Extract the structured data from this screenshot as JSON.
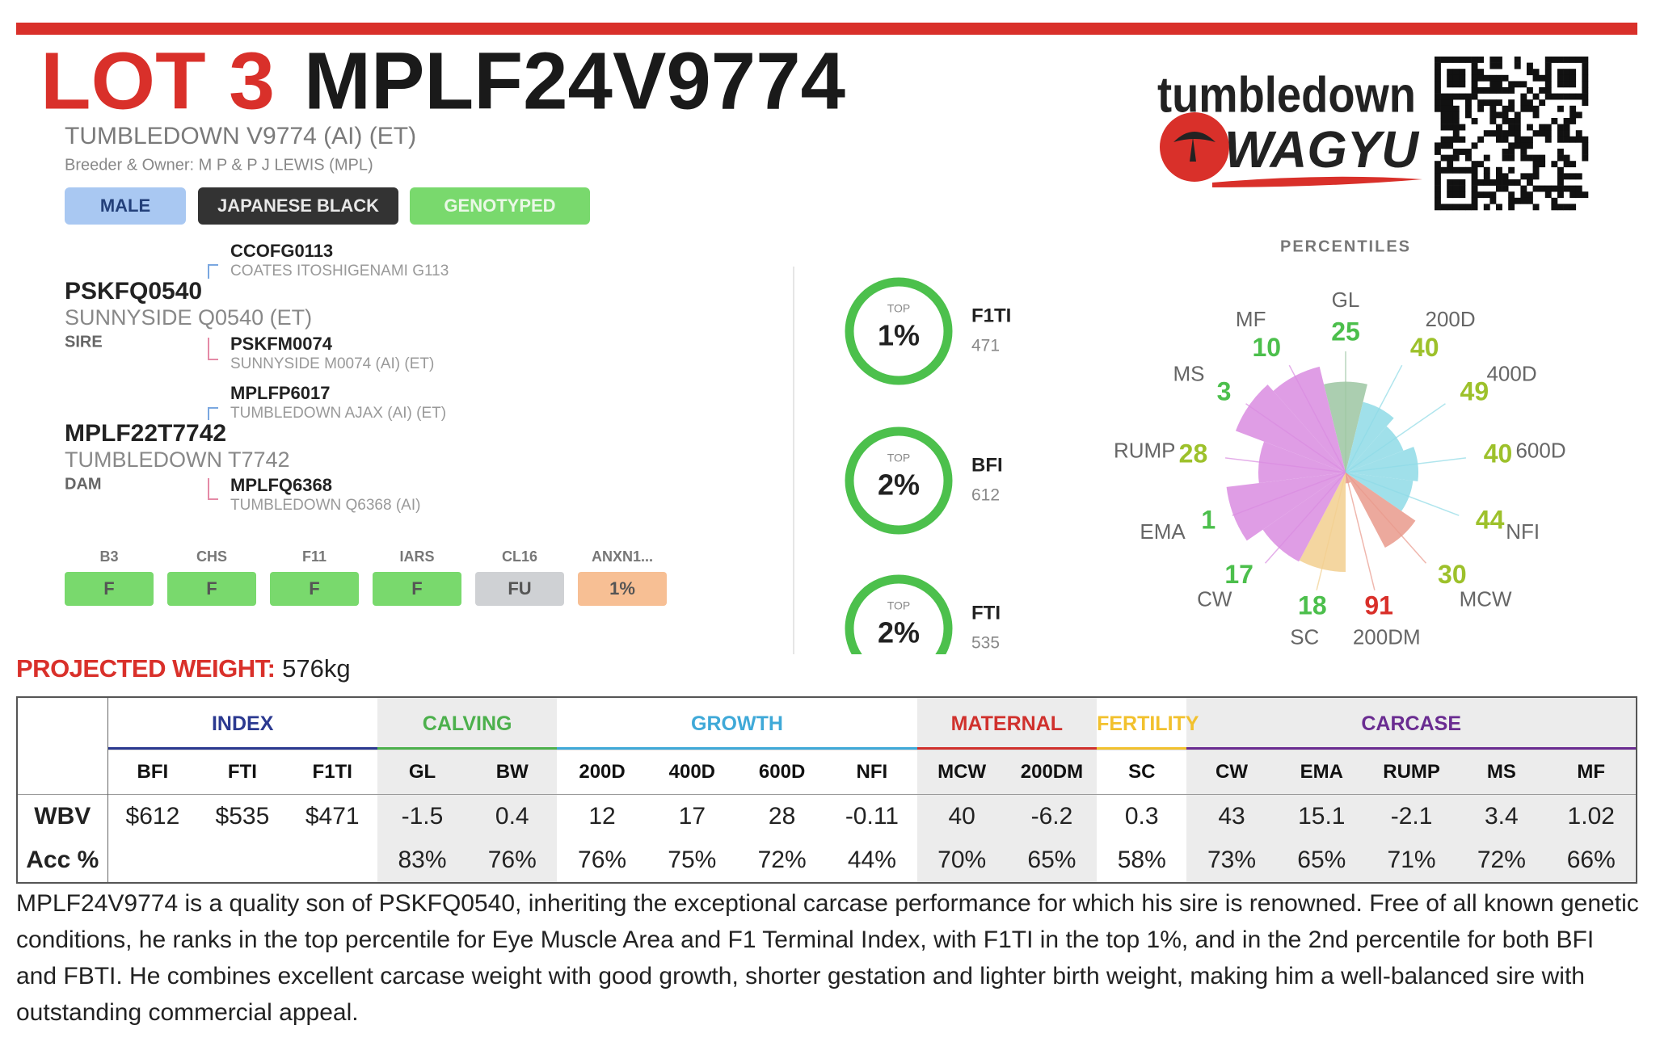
{
  "header": {
    "lot": "LOT 3",
    "id": "MPLF24V9774",
    "name": "TUMBLEDOWN V9774 (AI) (ET)",
    "breeder": "Breeder & Owner: M P & P J LEWIS (MPL)"
  },
  "badges": [
    {
      "text": "MALE",
      "bg": "#a9c8f2",
      "fg": "#23407a"
    },
    {
      "text": "JAPANESE BLACK",
      "bg": "#333333",
      "fg": "#e8e8e8"
    },
    {
      "text": "GENOTYPED",
      "bg": "#79d96d",
      "fg": "#eaf8e6"
    }
  ],
  "pedigree": {
    "sire": {
      "id": "PSKFQ0540",
      "name": "SUNNYSIDE Q0540 (ET)",
      "role": "SIRE"
    },
    "sire_sire": {
      "id": "CCOFG0113",
      "name": "COATES ITOSHIGENAMI G113"
    },
    "sire_dam": {
      "id": "PSKFM0074",
      "name": "SUNNYSIDE M0074 (AI) (ET)"
    },
    "dam": {
      "id": "MPLF22T7742",
      "name": "TUMBLEDOWN T7742",
      "role": "DAM"
    },
    "dam_sire": {
      "id": "MPLFP6017",
      "name": "TUMBLEDOWN AJAX (AI) (ET)"
    },
    "dam_dam": {
      "id": "MPLFQ6368",
      "name": "TUMBLEDOWN Q6368 (AI)"
    }
  },
  "conditions": [
    {
      "label": "B3",
      "value": "F",
      "color": "#79d96d"
    },
    {
      "label": "CHS",
      "value": "F",
      "color": "#79d96d"
    },
    {
      "label": "F11",
      "value": "F",
      "color": "#79d96d"
    },
    {
      "label": "IARS",
      "value": "F",
      "color": "#79d96d"
    },
    {
      "label": "CL16",
      "value": "FU",
      "color": "#cfd1d4"
    },
    {
      "label": "ANXN1...",
      "value": "1%",
      "color": "#f7bf94"
    }
  ],
  "rankings": [
    {
      "top": "TOP",
      "pct": "1%",
      "index": "F1TI",
      "value": "471"
    },
    {
      "top": "TOP",
      "pct": "2%",
      "index": "BFI",
      "value": "612"
    },
    {
      "top": "TOP",
      "pct": "2%",
      "index": "FTI",
      "value": "535"
    }
  ],
  "logo": {
    "line1": "tumbledown",
    "line2": "WAGYU"
  },
  "percentiles": {
    "title": "PERCENTILES",
    "traits": [
      {
        "name": "GL",
        "value": 25,
        "color": "#9cc6a2",
        "value_color": "#4cbf4c"
      },
      {
        "name": "200D",
        "value": 40,
        "color": "#8fdbe6",
        "value_color": "#9dc12b"
      },
      {
        "name": "400D",
        "value": 49,
        "color": "#8fdbe6",
        "value_color": "#9dc12b"
      },
      {
        "name": "600D",
        "value": 40,
        "color": "#8fdbe6",
        "value_color": "#9dc12b"
      },
      {
        "name": "NFI",
        "value": 44,
        "color": "#8fdbe6",
        "value_color": "#9dc12b"
      },
      {
        "name": "MCW",
        "value": 30,
        "color": "#e99a8c",
        "value_color": "#9dc12b"
      },
      {
        "name": "200DM",
        "value": 91,
        "color": "#e99a8c",
        "value_color": "#d9302a"
      },
      {
        "name": "SC",
        "value": 18,
        "color": "#f2cf8f",
        "value_color": "#4cbf4c"
      },
      {
        "name": "CW",
        "value": 17,
        "color": "#d98ce0",
        "value_color": "#4cbf4c"
      },
      {
        "name": "EMA",
        "value": 1,
        "color": "#d98ce0",
        "value_color": "#4cbf4c"
      },
      {
        "name": "RUMP",
        "value": 28,
        "color": "#d98ce0",
        "value_color": "#9dc12b"
      },
      {
        "name": "MS",
        "value": 3,
        "color": "#d98ce0",
        "value_color": "#4cbf4c"
      },
      {
        "name": "MF",
        "value": 10,
        "color": "#d98ce0",
        "value_color": "#4cbf4c"
      }
    ]
  },
  "projected_weight": {
    "label": "PROJECTED WEIGHT:",
    "value": "576kg"
  },
  "table": {
    "groups": [
      {
        "name": "INDEX",
        "color": "#2b3990",
        "shaded": false,
        "columns": [
          "BFI",
          "FTI",
          "F1TI"
        ]
      },
      {
        "name": "CALVING",
        "color": "#4cb04c",
        "shaded": true,
        "columns": [
          "GL",
          "BW"
        ]
      },
      {
        "name": "GROWTH",
        "color": "#3fa9d8",
        "shaded": false,
        "columns": [
          "200D",
          "400D",
          "600D",
          "NFI"
        ]
      },
      {
        "name": "MATERNAL",
        "color": "#d0312d",
        "shaded": true,
        "columns": [
          "MCW",
          "200DM"
        ]
      },
      {
        "name": "FERTILITY",
        "color": "#f2c12e",
        "shaded": false,
        "columns": [
          "SC"
        ]
      },
      {
        "name": "CARCASE",
        "color": "#6a2c91",
        "shaded": true,
        "columns": [
          "CW",
          "EMA",
          "RUMP",
          "MS",
          "MF"
        ]
      }
    ],
    "rows": [
      {
        "label": "WBV",
        "cells": [
          "$612",
          "$535",
          "$471",
          "-1.5",
          "0.4",
          "12",
          "17",
          "28",
          "-0.11",
          "40",
          "-6.2",
          "0.3",
          "43",
          "15.1",
          "-2.1",
          "3.4",
          "1.02"
        ]
      },
      {
        "label": "Acc %",
        "cells": [
          null,
          null,
          null,
          "83%",
          "76%",
          "76%",
          "75%",
          "72%",
          "44%",
          "70%",
          "65%",
          "58%",
          "73%",
          "65%",
          "71%",
          "72%",
          "66%"
        ]
      }
    ]
  },
  "description": "MPLF24V9774 is a quality son of PSKFQ0540, inheriting the exceptional carcase performance for which his sire is renowned. Free of all known genetic conditions, he ranks in the top percentile for Eye Muscle Area and F1 Terminal Index, with F1TI in the top 1%, and in the 2nd percentile for both BFI and FBTI. He combines excellent carcase weight with good growth, shorter gestation and lighter birth weight, making him a well-balanced sire with outstanding commercial appeal."
}
